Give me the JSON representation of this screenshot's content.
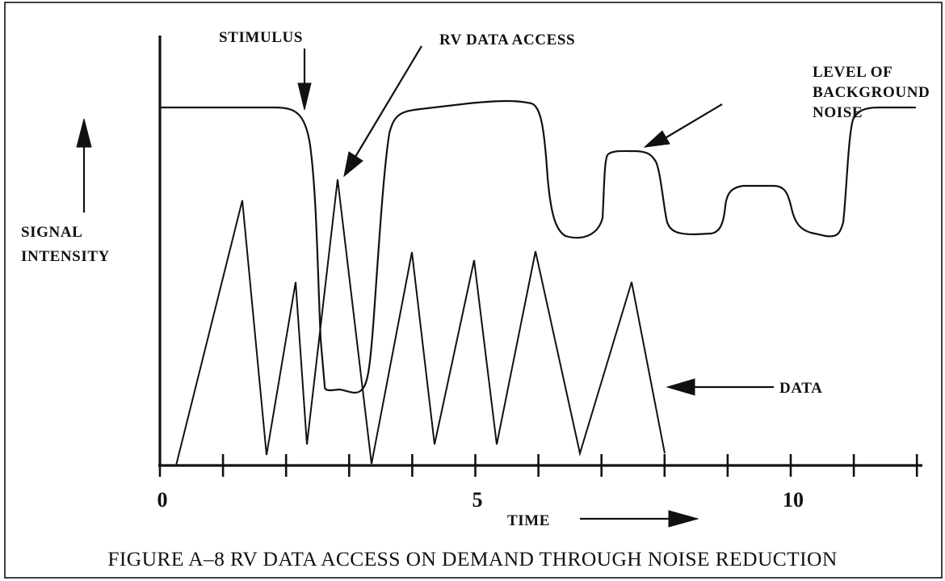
{
  "figure": {
    "caption": "FIGURE A–8  RV DATA ACCESS ON DEMAND THROUGH NOISE REDUCTION",
    "y_axis_label_line1": "SIGNAL",
    "y_axis_label_line2": "INTENSITY",
    "x_axis_label": "TIME",
    "x_ticks": [
      {
        "value": 0,
        "label": "0"
      },
      {
        "value": 5,
        "label": "5"
      },
      {
        "value": 10,
        "label": "10"
      }
    ],
    "annotations": {
      "stimulus": "STIMULUS",
      "rv_data_access": "RV DATA ACCESS",
      "noise_line1": "LEVEL OF",
      "noise_line2": "BACKGROUND",
      "noise_line3": "NOISE",
      "data": "DATA"
    },
    "x_range": [
      0,
      12
    ],
    "tick_count": 13
  }
}
